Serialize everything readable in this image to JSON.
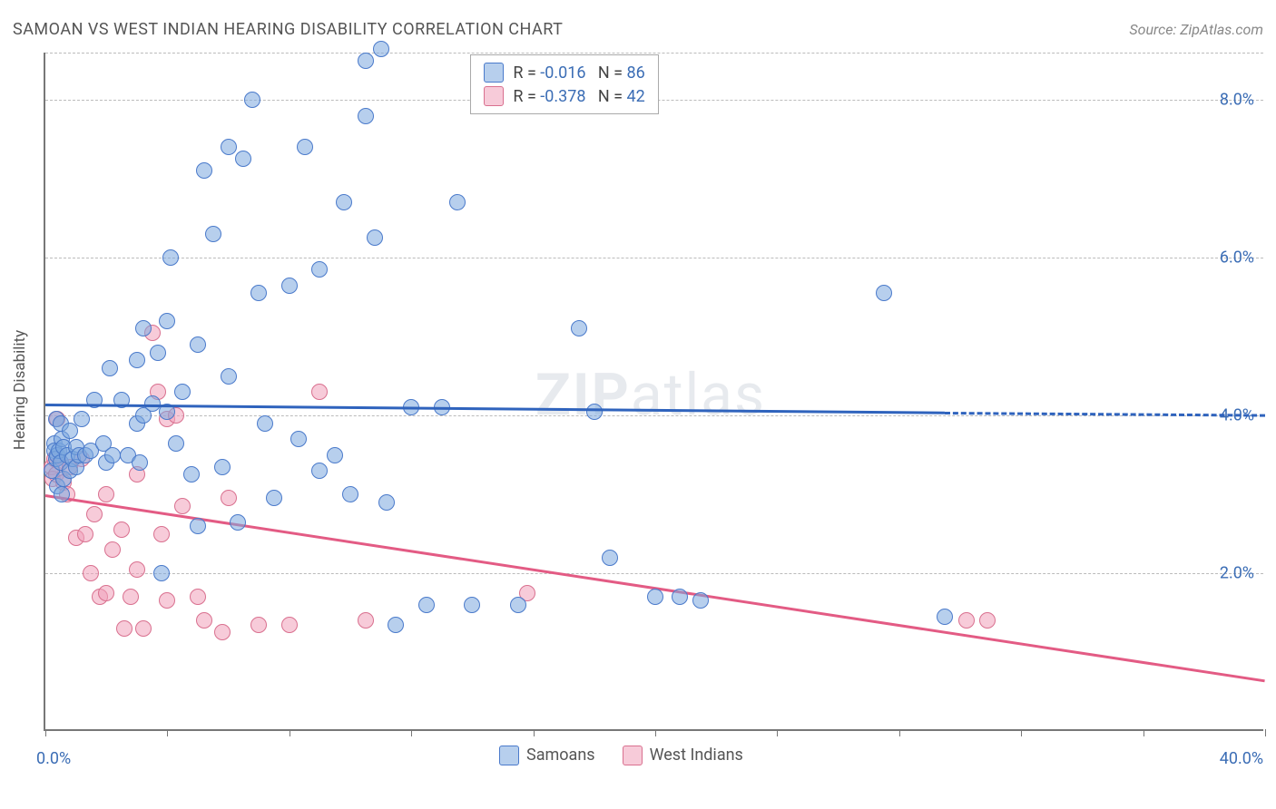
{
  "header": {
    "title": "SAMOAN VS WEST INDIAN HEARING DISABILITY CORRELATION CHART",
    "source": "Source: ZipAtlas.com"
  },
  "watermark": {
    "bold": "ZIP",
    "rest": "atlas"
  },
  "axes": {
    "y_title": "Hearing Disability",
    "x_min": 0,
    "x_max": 40,
    "y_min": 0,
    "y_max": 8.6,
    "x_label_min": "0.0%",
    "x_label_max": "40.0%",
    "y_ticks": [
      {
        "v": 2,
        "label": "2.0%"
      },
      {
        "v": 4,
        "label": "4.0%"
      },
      {
        "v": 6,
        "label": "6.0%"
      },
      {
        "v": 8,
        "label": "8.0%"
      }
    ],
    "x_tick_positions": [
      0,
      4,
      8,
      12,
      16,
      20,
      24,
      28,
      32,
      36,
      40
    ],
    "grid_dash_color": "#bbbbbb"
  },
  "series": {
    "samoans": {
      "label": "Samoans",
      "fill": "rgba(124,168,222,0.55)",
      "stroke": "#4a7acb",
      "trend_color": "#2f63bd",
      "R": "-0.016",
      "N": "86",
      "trend": {
        "x1": 0,
        "y1": 4.15,
        "x2": 29.5,
        "y2": 4.05
      },
      "trend_ext": {
        "x1": 29.5,
        "y1": 4.05,
        "x2": 40,
        "y2": 4.02
      },
      "points": [
        [
          0.2,
          3.3
        ],
        [
          0.3,
          3.65
        ],
        [
          0.3,
          3.55
        ],
        [
          0.35,
          3.95
        ],
        [
          0.35,
          3.45
        ],
        [
          0.4,
          3.5
        ],
        [
          0.4,
          3.1
        ],
        [
          0.45,
          3.55
        ],
        [
          0.5,
          3.9
        ],
        [
          0.5,
          3.4
        ],
        [
          0.55,
          3.0
        ],
        [
          0.55,
          3.7
        ],
        [
          0.6,
          3.6
        ],
        [
          0.6,
          3.2
        ],
        [
          0.7,
          3.5
        ],
        [
          0.8,
          3.3
        ],
        [
          0.8,
          3.8
        ],
        [
          0.9,
          3.45
        ],
        [
          1.0,
          3.6
        ],
        [
          1.0,
          3.35
        ],
        [
          1.1,
          3.5
        ],
        [
          1.2,
          3.95
        ],
        [
          1.3,
          3.5
        ],
        [
          1.5,
          3.55
        ],
        [
          1.6,
          4.2
        ],
        [
          1.9,
          3.65
        ],
        [
          2.0,
          3.4
        ],
        [
          2.1,
          4.6
        ],
        [
          2.2,
          3.5
        ],
        [
          2.5,
          4.2
        ],
        [
          2.7,
          3.5
        ],
        [
          3.0,
          3.9
        ],
        [
          3.0,
          4.7
        ],
        [
          3.1,
          3.4
        ],
        [
          3.2,
          5.1
        ],
        [
          3.2,
          4.0
        ],
        [
          3.5,
          4.15
        ],
        [
          3.7,
          4.8
        ],
        [
          3.8,
          2.0
        ],
        [
          4.0,
          4.05
        ],
        [
          4.0,
          5.2
        ],
        [
          4.1,
          6.0
        ],
        [
          4.3,
          3.65
        ],
        [
          4.5,
          4.3
        ],
        [
          4.8,
          3.25
        ],
        [
          5.0,
          4.9
        ],
        [
          5.0,
          2.6
        ],
        [
          5.2,
          7.1
        ],
        [
          5.5,
          6.3
        ],
        [
          5.8,
          3.35
        ],
        [
          6.0,
          4.5
        ],
        [
          6.0,
          7.4
        ],
        [
          6.3,
          2.65
        ],
        [
          6.5,
          7.25
        ],
        [
          6.8,
          8.0
        ],
        [
          7.0,
          5.55
        ],
        [
          7.2,
          3.9
        ],
        [
          7.5,
          2.95
        ],
        [
          8.0,
          5.65
        ],
        [
          8.3,
          3.7
        ],
        [
          8.5,
          7.4
        ],
        [
          9.0,
          3.3
        ],
        [
          9.0,
          5.85
        ],
        [
          9.5,
          3.5
        ],
        [
          9.8,
          6.7
        ],
        [
          10.0,
          3.0
        ],
        [
          10.5,
          8.5
        ],
        [
          10.5,
          7.8
        ],
        [
          10.8,
          6.25
        ],
        [
          11.0,
          8.65
        ],
        [
          11.2,
          2.9
        ],
        [
          11.5,
          1.35
        ],
        [
          12.0,
          4.1
        ],
        [
          12.5,
          1.6
        ],
        [
          13.0,
          4.1
        ],
        [
          13.5,
          6.7
        ],
        [
          14.0,
          1.6
        ],
        [
          15.5,
          1.6
        ],
        [
          17.5,
          5.1
        ],
        [
          18.0,
          4.05
        ],
        [
          18.5,
          2.2
        ],
        [
          20.0,
          1.7
        ],
        [
          20.8,
          1.7
        ],
        [
          21.5,
          1.65
        ],
        [
          27.5,
          5.55
        ],
        [
          29.5,
          1.45
        ]
      ]
    },
    "west_indians": {
      "label": "West Indians",
      "fill": "rgba(240,160,185,0.55)",
      "stroke": "#d9708f",
      "trend_color": "#e35b84",
      "R": "-0.378",
      "N": "42",
      "trend": {
        "x1": 0,
        "y1": 3.0,
        "x2": 40,
        "y2": 0.65
      },
      "points": [
        [
          0.2,
          3.35
        ],
        [
          0.25,
          3.2
        ],
        [
          0.3,
          3.45
        ],
        [
          0.35,
          3.25
        ],
        [
          0.4,
          3.95
        ],
        [
          0.5,
          3.4
        ],
        [
          0.6,
          3.15
        ],
        [
          0.7,
          3.0
        ],
        [
          0.8,
          3.35
        ],
        [
          1.0,
          2.45
        ],
        [
          1.2,
          3.45
        ],
        [
          1.3,
          2.5
        ],
        [
          1.5,
          2.0
        ],
        [
          1.6,
          2.75
        ],
        [
          1.8,
          1.7
        ],
        [
          2.0,
          1.75
        ],
        [
          2.0,
          3.0
        ],
        [
          2.2,
          2.3
        ],
        [
          2.5,
          2.55
        ],
        [
          2.6,
          1.3
        ],
        [
          2.8,
          1.7
        ],
        [
          3.0,
          3.25
        ],
        [
          3.0,
          2.05
        ],
        [
          3.2,
          1.3
        ],
        [
          3.5,
          5.05
        ],
        [
          3.7,
          4.3
        ],
        [
          3.8,
          2.5
        ],
        [
          4.0,
          1.65
        ],
        [
          4.0,
          3.95
        ],
        [
          4.3,
          4.0
        ],
        [
          4.5,
          2.85
        ],
        [
          5.0,
          1.7
        ],
        [
          5.2,
          1.4
        ],
        [
          5.8,
          1.25
        ],
        [
          6.0,
          2.95
        ],
        [
          7.0,
          1.35
        ],
        [
          8.0,
          1.35
        ],
        [
          9.0,
          4.3
        ],
        [
          10.5,
          1.4
        ],
        [
          15.8,
          1.75
        ],
        [
          30.2,
          1.4
        ],
        [
          30.9,
          1.4
        ]
      ]
    }
  },
  "legend_top": {
    "R_label": "R =",
    "N_label": "N ="
  }
}
